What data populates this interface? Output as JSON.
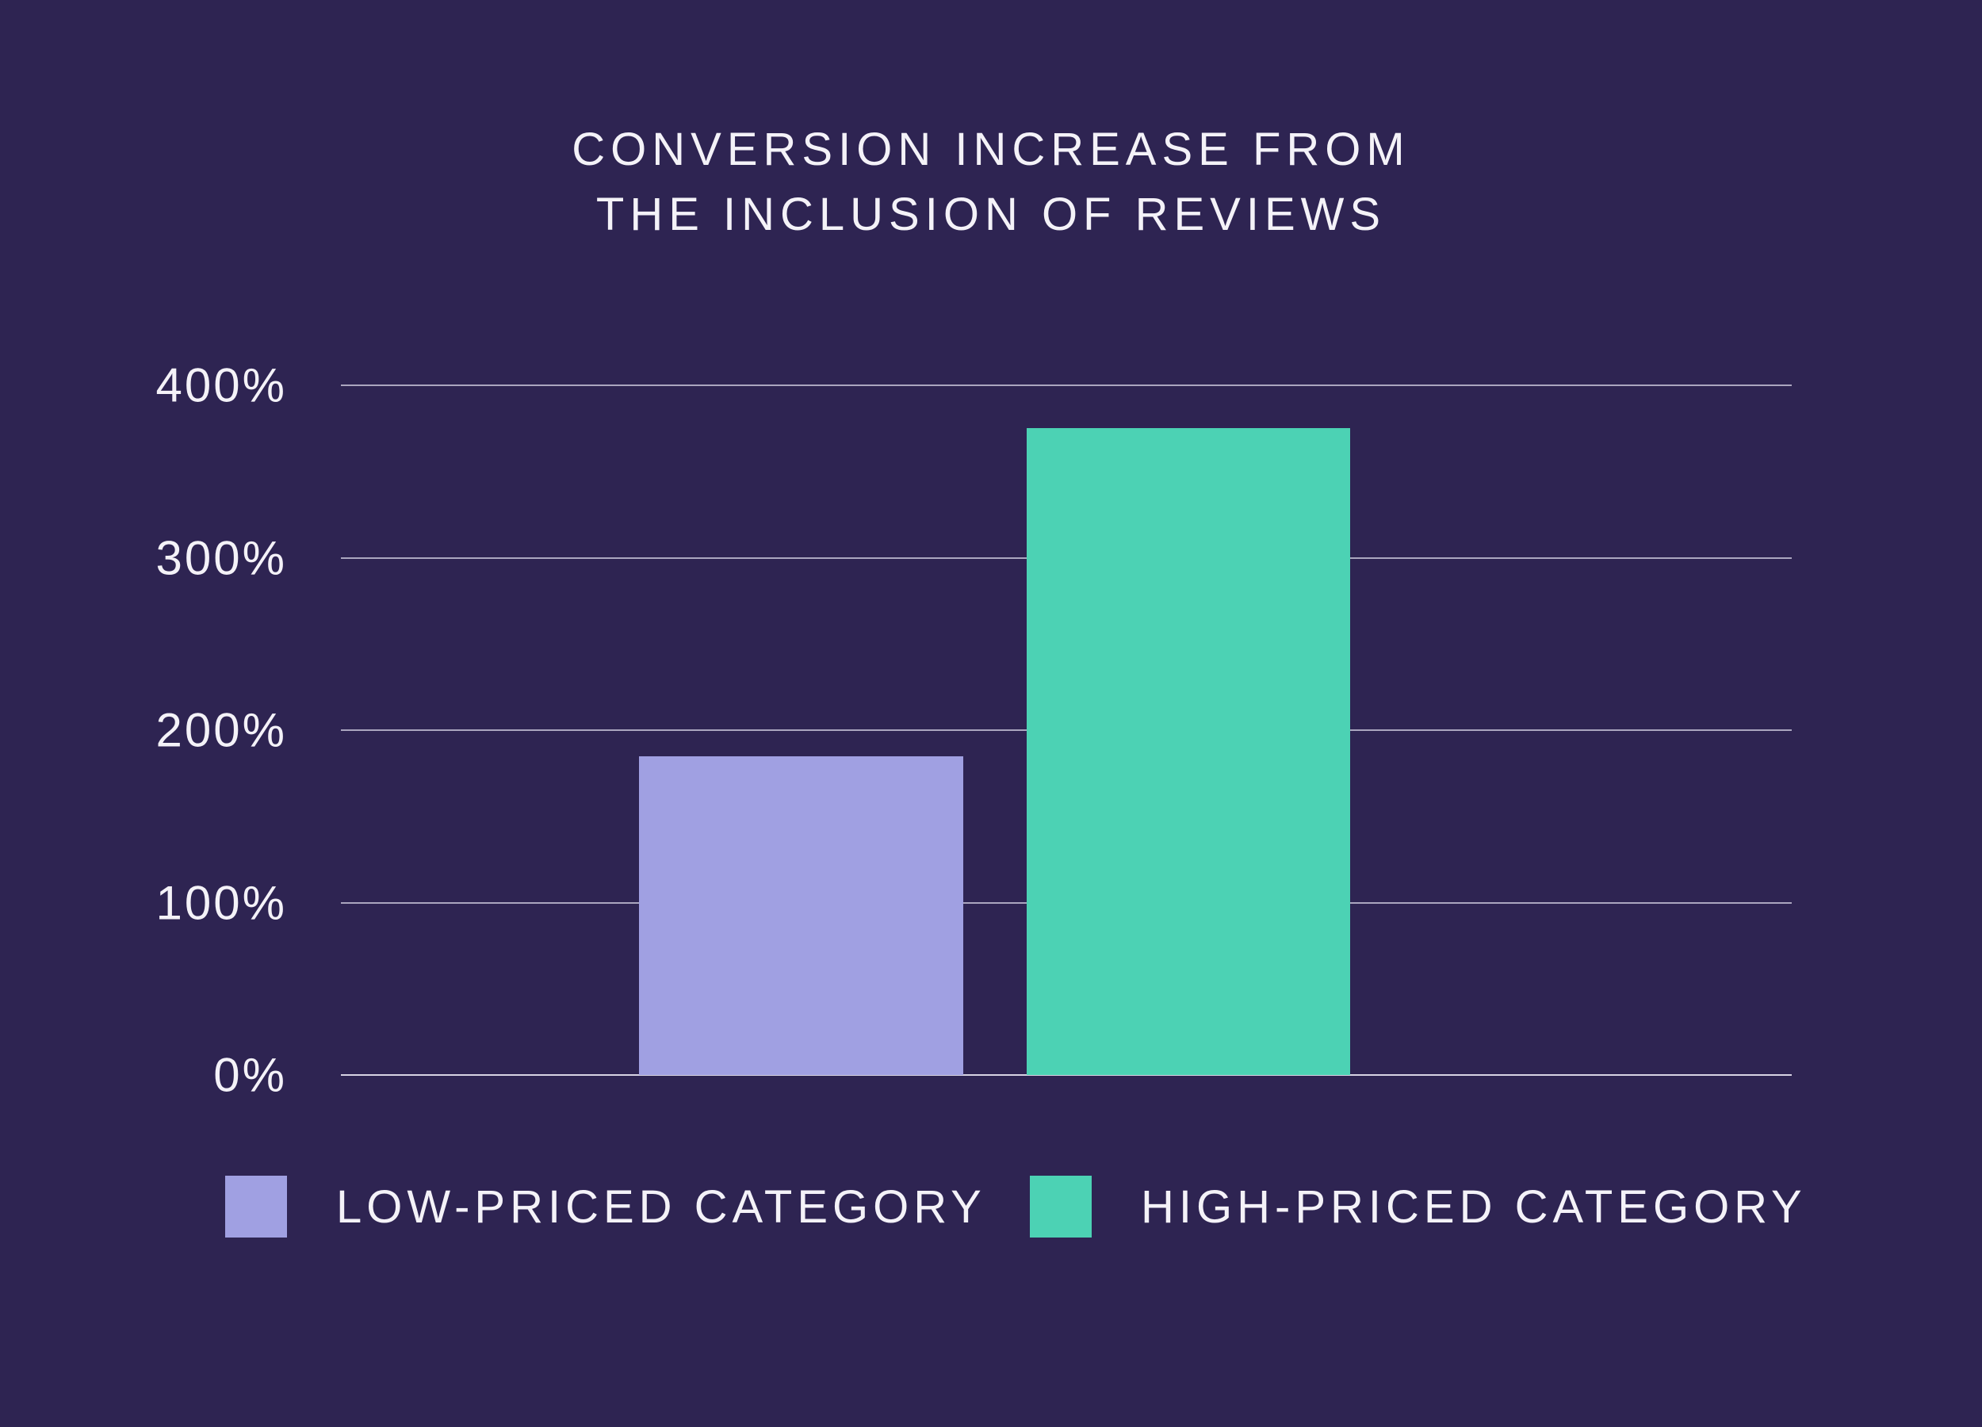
{
  "title": {
    "line1": "CONVERSION INCREASE FROM",
    "line2": "THE INCLUSION OF REVIEWS"
  },
  "chart_data": {
    "type": "bar",
    "title": "CONVERSION INCREASE FROM THE INCLUSION OF REVIEWS",
    "categories": [
      "LOW-PRICED CATEGORY",
      "HIGH-PRICED CATEGORY"
    ],
    "values": [
      185,
      375
    ],
    "unit": "%",
    "ylabel": "",
    "xlabel": "",
    "ylim": [
      0,
      400
    ],
    "ytick_interval": 100,
    "yticks": [
      "400%",
      "300%",
      "200%",
      "100%",
      "0%"
    ],
    "grid": true,
    "legend_position": "bottom",
    "series_colors": [
      "#A0A0E2",
      "#4CD2B4"
    ]
  },
  "legend": {
    "items": [
      {
        "label": "LOW-PRICED CATEGORY",
        "color": "#A0A0E2"
      },
      {
        "label": "HIGH-PRICED CATEGORY",
        "color": "#4CD2B4"
      }
    ]
  },
  "colors": {
    "background": "#2E2452",
    "text": "#F4F2F8",
    "gridline": "#D6D1E4",
    "bar_low": "#A0A0E2",
    "bar_high": "#4CD2B4"
  }
}
